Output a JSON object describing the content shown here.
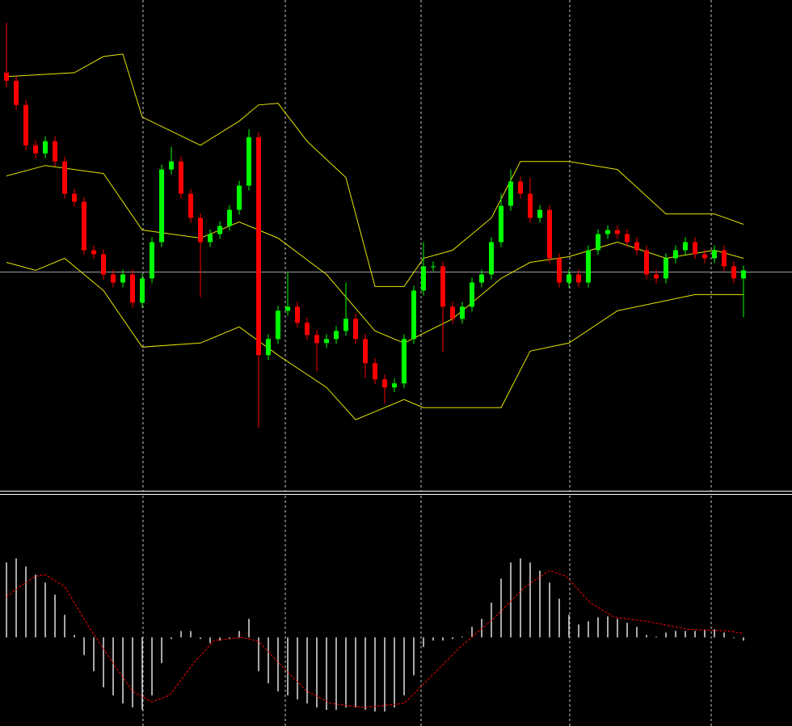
{
  "chart_data": [
    {
      "type": "candlestick",
      "xlim": [
        -0.67,
        81
      ],
      "ylim": [
        0,
        608
      ],
      "xticks": [
        14.08,
        28.75,
        42.75,
        58.08,
        72.67
      ],
      "grid": true,
      "up_color": "#00ff00",
      "down_color": "#ff0000",
      "price_line": 271,
      "price_line_color": "#a0a0a0",
      "open": [
        518,
        508,
        478,
        428,
        418,
        433,
        408,
        368,
        358,
        298,
        293,
        268,
        258,
        268,
        233,
        263,
        308,
        398,
        408,
        368,
        338,
        308,
        318,
        328,
        348,
        378,
        438,
        168,
        188,
        223,
        228,
        208,
        193,
        183,
        188,
        198,
        213,
        188,
        158,
        138,
        128,
        133,
        188,
        248,
        278,
        278,
        228,
        213,
        228,
        258,
        268,
        308,
        353,
        383,
        368,
        338,
        348,
        288,
        258,
        268,
        258,
        298,
        318,
        323,
        318,
        308,
        298,
        268,
        263,
        288,
        298,
        308,
        293,
        288,
        298,
        278,
        263
      ],
      "close": [
        508,
        478,
        428,
        418,
        433,
        408,
        368,
        358,
        298,
        293,
        268,
        258,
        268,
        233,
        263,
        308,
        398,
        408,
        368,
        338,
        308,
        318,
        328,
        348,
        378,
        438,
        168,
        188,
        223,
        228,
        208,
        193,
        183,
        188,
        198,
        213,
        188,
        158,
        138,
        128,
        133,
        188,
        248,
        278,
        278,
        228,
        213,
        228,
        258,
        268,
        308,
        353,
        383,
        368,
        338,
        348,
        288,
        258,
        268,
        258,
        298,
        318,
        323,
        318,
        308,
        298,
        268,
        263,
        288,
        298,
        308,
        293,
        288,
        298,
        278,
        263,
        273
      ],
      "high": [
        580,
        514,
        484,
        434,
        439,
        439,
        414,
        374,
        364,
        304,
        299,
        274,
        274,
        274,
        269,
        314,
        404,
        426,
        414,
        374,
        344,
        324,
        334,
        354,
        384,
        448,
        444,
        194,
        229,
        270,
        234,
        214,
        199,
        194,
        204,
        258,
        219,
        194,
        164,
        144,
        139,
        194,
        254,
        308,
        284,
        284,
        234,
        234,
        264,
        274,
        314,
        368,
        398,
        389,
        388,
        354,
        354,
        294,
        274,
        274,
        304,
        324,
        329,
        329,
        324,
        314,
        304,
        274,
        294,
        304,
        314,
        314,
        299,
        304,
        304,
        284,
        279
      ],
      "low": [
        500,
        472,
        422,
        412,
        412,
        402,
        362,
        352,
        292,
        287,
        262,
        252,
        252,
        227,
        227,
        257,
        302,
        392,
        362,
        332,
        240,
        302,
        312,
        322,
        342,
        372,
        78,
        162,
        182,
        217,
        202,
        187,
        148,
        177,
        182,
        192,
        182,
        140,
        132,
        108,
        122,
        127,
        182,
        242,
        272,
        172,
        207,
        207,
        222,
        252,
        262,
        302,
        347,
        362,
        332,
        332,
        282,
        252,
        252,
        252,
        252,
        292,
        312,
        312,
        302,
        292,
        262,
        257,
        257,
        282,
        292,
        287,
        282,
        282,
        272,
        257,
        215
      ],
      "bands": [
        {
          "color": "#e6e600",
          "x": [
            0,
            7,
            10,
            12,
            14,
            20,
            24,
            26,
            28,
            31,
            35,
            38,
            41,
            43,
            46,
            50,
            53,
            58,
            63,
            68,
            73,
            76
          ],
          "values": [
            513,
            518,
            538,
            541,
            463,
            428,
            458,
            478,
            480,
            433,
            388,
            253,
            253,
            288,
            298,
            338,
            408,
            408,
            398,
            343,
            343,
            330
          ]
        },
        {
          "color": "#e6e600",
          "x": [
            0,
            4,
            10,
            14,
            20,
            24,
            28,
            33,
            38,
            41,
            46,
            51,
            54,
            58,
            63,
            68,
            73,
            76
          ],
          "values": [
            390,
            403,
            393,
            323,
            313,
            333,
            313,
            268,
            198,
            183,
            213,
            263,
            283,
            290,
            308,
            288,
            298,
            288
          ]
        },
        {
          "color": "#e6e600",
          "x": [
            0,
            3,
            6,
            10,
            14,
            20,
            24,
            28,
            33,
            36,
            38,
            41,
            43,
            48,
            51,
            54,
            58,
            63,
            71,
            76
          ],
          "values": [
            283,
            273,
            288,
            248,
            178,
            183,
            203,
            168,
            128,
            88,
            98,
            113,
            103,
            103,
            103,
            173,
            183,
            223,
            243,
            243
          ]
        }
      ]
    },
    {
      "type": "macd",
      "xlim": [
        -0.67,
        81
      ],
      "ylim": [
        -110,
        176
      ],
      "color": "#e0e0e0",
      "values": [
        93,
        98,
        88,
        78,
        68,
        53,
        28,
        3,
        -22,
        -42,
        -62,
        -72,
        -82,
        -87,
        -90,
        -72,
        -32,
        -2,
        8,
        8,
        -2,
        -7,
        -4,
        -2,
        8,
        23,
        -42,
        -57,
        -67,
        -72,
        -77,
        -82,
        -87,
        -90,
        -90,
        -87,
        -87,
        -90,
        -92,
        -92,
        -87,
        -72,
        -47,
        -12,
        -4,
        -4,
        -2,
        1,
        13,
        23,
        43,
        73,
        93,
        98,
        93,
        83,
        68,
        48,
        28,
        16,
        20,
        25,
        26,
        23,
        18,
        13,
        3,
        1,
        6,
        8,
        8,
        8,
        10,
        10,
        6,
        -1,
        -4
      ],
      "signal": {
        "color": "#ff0000",
        "x": [
          0,
          1,
          3,
          4,
          6,
          8.5,
          11,
          13,
          15,
          16.8,
          19.3,
          21.4,
          24.3,
          26,
          28.5,
          31,
          33.5,
          36.8,
          41,
          43.5,
          46.8,
          50.2,
          53.5,
          56,
          57.7,
          60.2,
          62.7,
          66,
          70.2,
          74.3,
          76
        ],
        "values": [
          50,
          60,
          76,
          78,
          63,
          13,
          -32,
          -67,
          -80,
          -72,
          -32,
          -4,
          0,
          -5,
          -37,
          -67,
          -82,
          -87,
          -82,
          -52,
          -12,
          23,
          63,
          83,
          76,
          43,
          25,
          20,
          10,
          8,
          5
        ]
      }
    }
  ]
}
